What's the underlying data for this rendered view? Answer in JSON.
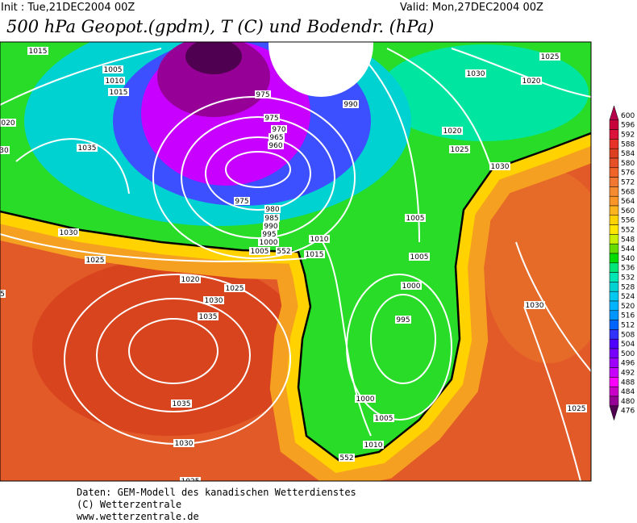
{
  "header": {
    "init": "Init : Tue,21DEC2004 00Z",
    "valid": "Valid: Mon,27DEC2004 00Z",
    "title": "500 hPa Geopot.(gpdm), T (C) und Bodendr. (hPa)"
  },
  "legend": {
    "levels": [
      600,
      596,
      592,
      588,
      584,
      580,
      576,
      572,
      568,
      564,
      560,
      556,
      552,
      548,
      544,
      540,
      536,
      532,
      528,
      524,
      520,
      516,
      512,
      508,
      504,
      500,
      496,
      492,
      488,
      484,
      480,
      476
    ],
    "colors": [
      "#b4004b",
      "#c8003c",
      "#dc143c",
      "#e63228",
      "#dc4020",
      "#e65028",
      "#f06428",
      "#f07832",
      "#f58c32",
      "#fa9628",
      "#fcb41e",
      "#ffd200",
      "#ffe600",
      "#c8f000",
      "#64dc00",
      "#00dc00",
      "#00e678",
      "#00e6b4",
      "#00d2d2",
      "#00c8f0",
      "#00b4ff",
      "#0096ff",
      "#0064ff",
      "#3232ff",
      "#5000ff",
      "#7800ff",
      "#a000ff",
      "#c800ff",
      "#ff00ff",
      "#c800c8",
      "#960096",
      "#500050"
    ]
  },
  "map": {
    "isobar_labels": [
      "1015",
      "1005",
      "1010",
      "1015",
      "975",
      "990",
      "1030",
      "1025",
      "1020",
      "020",
      "30",
      "1035",
      "975",
      "970",
      "965",
      "960",
      "1020",
      "1025",
      "1030",
      "975",
      "980",
      "985",
      "990",
      "995",
      "1000",
      "1005",
      "552",
      "1010",
      "1015",
      "1005",
      "1005",
      "1030",
      "1025",
      "1000",
      "1020",
      "1025",
      "1030",
      "1035",
      "995",
      "1030",
      "5",
      "1035",
      "1000",
      "1005",
      "1030",
      "1010",
      "552",
      "1025",
      "1025"
    ]
  },
  "footer": {
    "lines": [
      "Daten: GEM-Modell des kanadischen Wetterdienstes",
      "(C) Wetterzentrale",
      "www.wetterzentrale.de"
    ]
  }
}
